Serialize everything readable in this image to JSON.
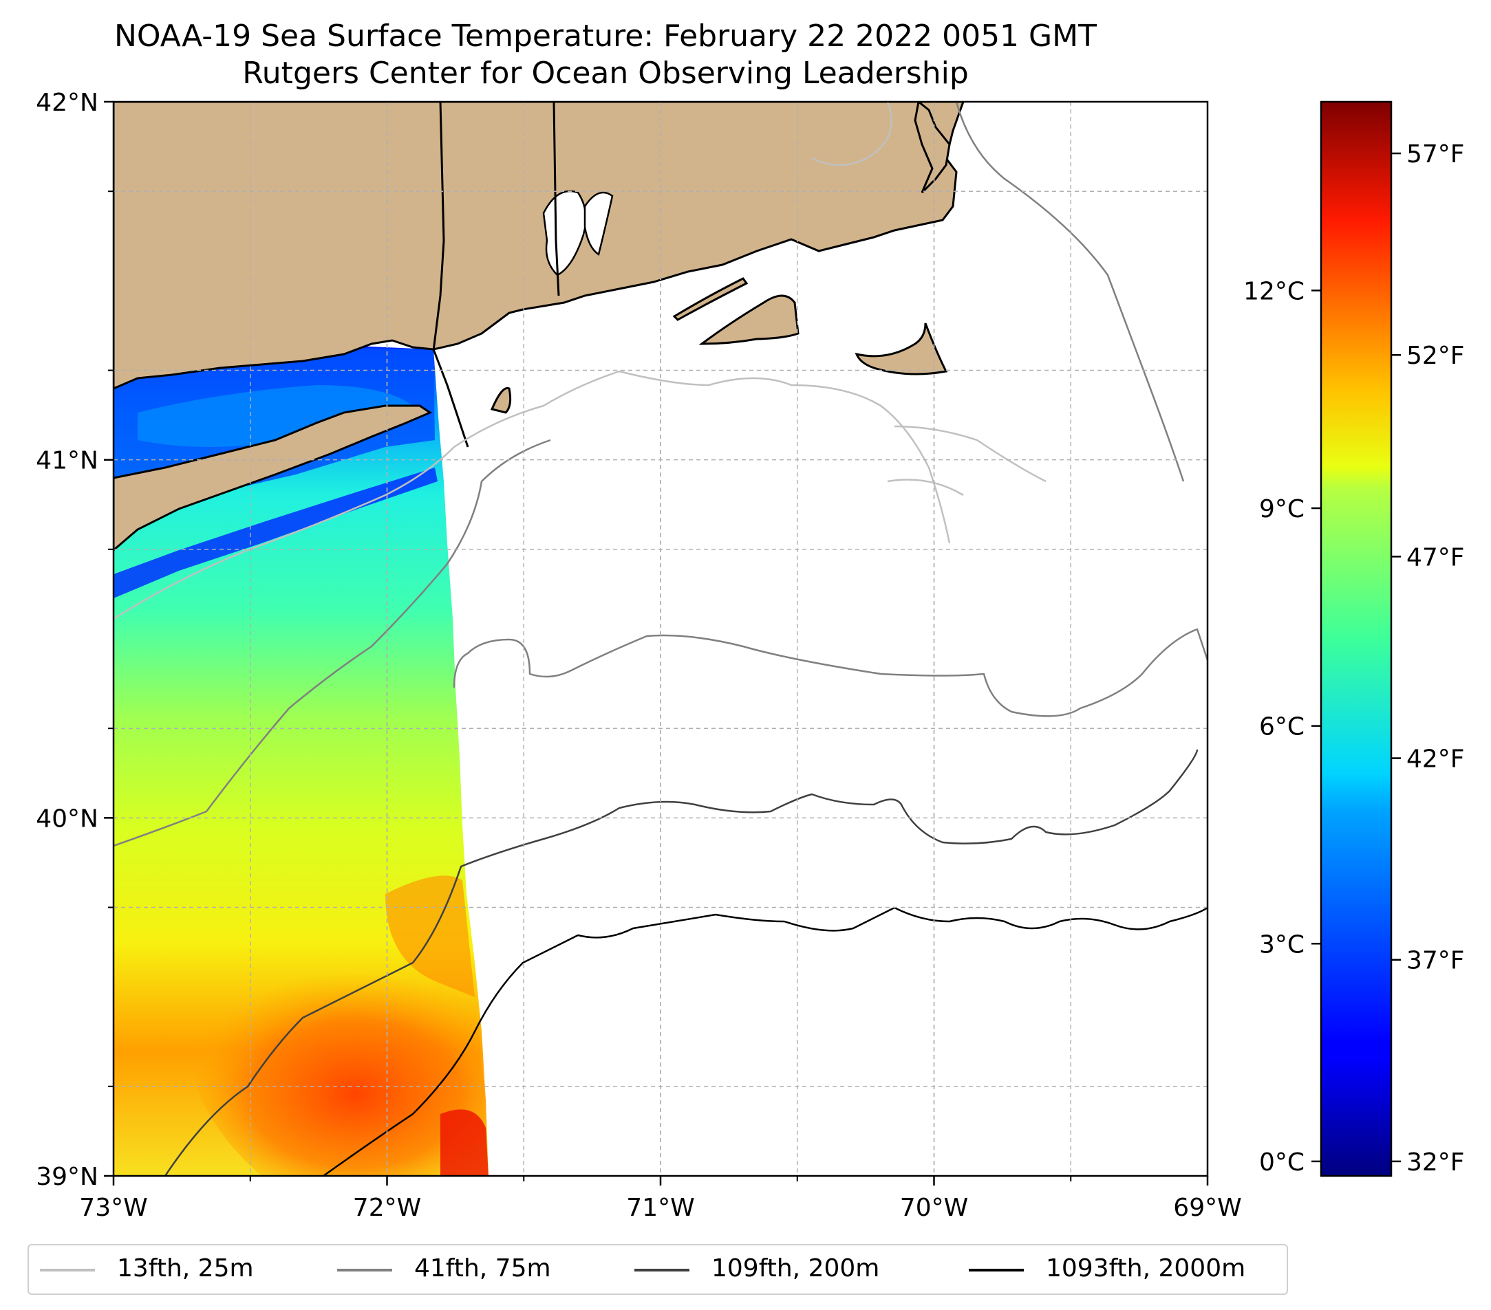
{
  "title": {
    "line1": "NOAA-19 Sea Surface Temperature: February 22 2022 0051 GMT",
    "line2": "Rutgers Center for Ocean Observing Leadership"
  },
  "map": {
    "lon_range": [
      -73,
      -69
    ],
    "lat_range": [
      39,
      42
    ],
    "lon_ticks": [
      {
        "value": -73,
        "label": "73°W"
      },
      {
        "value": -72,
        "label": "72°W"
      },
      {
        "value": -71,
        "label": "71°W"
      },
      {
        "value": -70,
        "label": "70°W"
      },
      {
        "value": -69,
        "label": "69°W"
      }
    ],
    "lat_ticks": [
      {
        "value": 39,
        "label": "39°N"
      },
      {
        "value": 40,
        "label": "40°N"
      },
      {
        "value": 41,
        "label": "41°N"
      },
      {
        "value": 42,
        "label": "42°N"
      }
    ],
    "gridlines": true
  },
  "colorbar": {
    "colormap": "jet",
    "range_c": [
      -0.2,
      14.6
    ],
    "celsius_ticks": [
      {
        "value": 0,
        "label": "0°C"
      },
      {
        "value": 3,
        "label": "3°C"
      },
      {
        "value": 6,
        "label": "6°C"
      },
      {
        "value": 9,
        "label": "9°C"
      },
      {
        "value": 12,
        "label": "12°C"
      }
    ],
    "fahrenheit_ticks": [
      {
        "value": 32,
        "label": "32°F"
      },
      {
        "value": 37,
        "label": "37°F"
      },
      {
        "value": 42,
        "label": "42°F"
      },
      {
        "value": 47,
        "label": "47°F"
      },
      {
        "value": 52,
        "label": "52°F"
      },
      {
        "value": 57,
        "label": "57°F"
      }
    ]
  },
  "legend": [
    {
      "label": "13fth, 25m",
      "color": "#c0c0c0"
    },
    {
      "label": "41fth, 75m",
      "color": "#808080"
    },
    {
      "label": "109fth, 200m",
      "color": "#404040"
    },
    {
      "label": "1093fth, 2000m",
      "color": "#000000"
    }
  ],
  "colors": {
    "land": "#d2b48c",
    "background": "#ffffff"
  }
}
